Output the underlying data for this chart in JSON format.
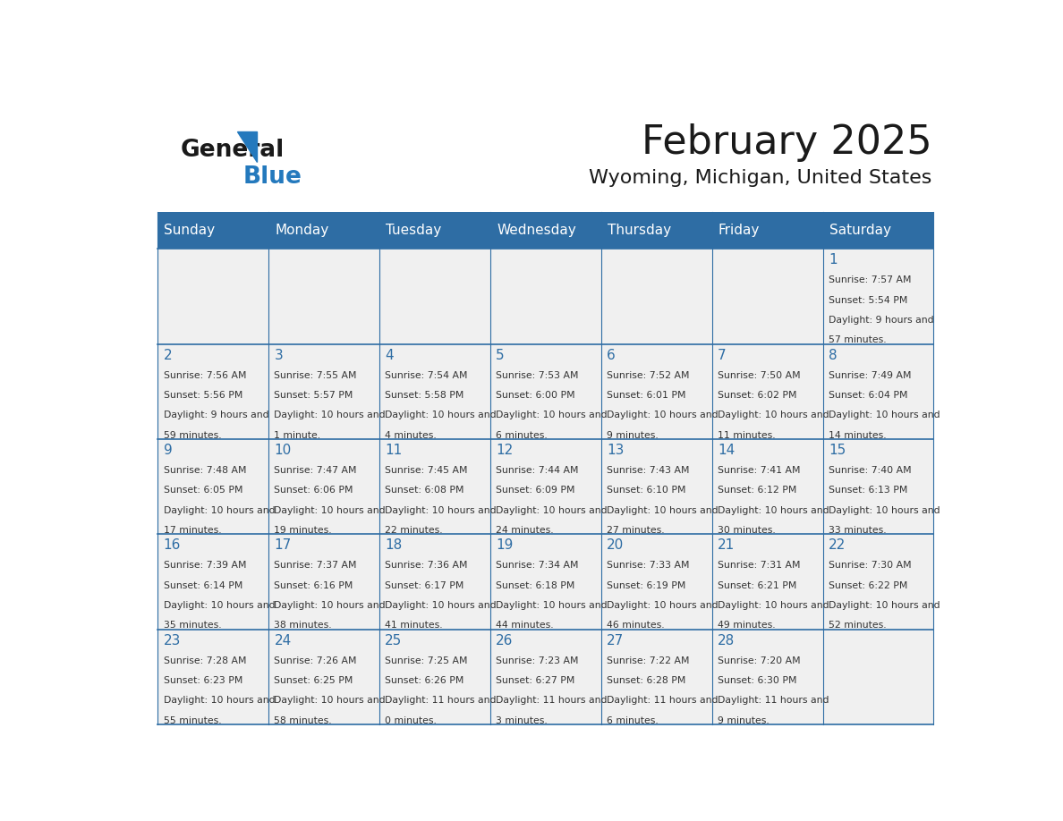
{
  "title": "February 2025",
  "subtitle": "Wyoming, Michigan, United States",
  "days_of_week": [
    "Sunday",
    "Monday",
    "Tuesday",
    "Wednesday",
    "Thursday",
    "Friday",
    "Saturday"
  ],
  "header_bg": "#2E6DA4",
  "header_text_color": "#FFFFFF",
  "cell_bg": "#F0F0F0",
  "cell_border_color": "#2E6DA4",
  "day_number_color": "#2E6DA4",
  "text_color": "#333333",
  "title_color": "#1a1a1a",
  "calendar_data": [
    {
      "day": 1,
      "col": 6,
      "row": 0,
      "sunrise": "7:57 AM",
      "sunset": "5:54 PM",
      "daylight": "9 hours and 57 minutes."
    },
    {
      "day": 2,
      "col": 0,
      "row": 1,
      "sunrise": "7:56 AM",
      "sunset": "5:56 PM",
      "daylight": "9 hours and 59 minutes."
    },
    {
      "day": 3,
      "col": 1,
      "row": 1,
      "sunrise": "7:55 AM",
      "sunset": "5:57 PM",
      "daylight": "10 hours and 1 minute."
    },
    {
      "day": 4,
      "col": 2,
      "row": 1,
      "sunrise": "7:54 AM",
      "sunset": "5:58 PM",
      "daylight": "10 hours and 4 minutes."
    },
    {
      "day": 5,
      "col": 3,
      "row": 1,
      "sunrise": "7:53 AM",
      "sunset": "6:00 PM",
      "daylight": "10 hours and 6 minutes."
    },
    {
      "day": 6,
      "col": 4,
      "row": 1,
      "sunrise": "7:52 AM",
      "sunset": "6:01 PM",
      "daylight": "10 hours and 9 minutes."
    },
    {
      "day": 7,
      "col": 5,
      "row": 1,
      "sunrise": "7:50 AM",
      "sunset": "6:02 PM",
      "daylight": "10 hours and 11 minutes."
    },
    {
      "day": 8,
      "col": 6,
      "row": 1,
      "sunrise": "7:49 AM",
      "sunset": "6:04 PM",
      "daylight": "10 hours and 14 minutes."
    },
    {
      "day": 9,
      "col": 0,
      "row": 2,
      "sunrise": "7:48 AM",
      "sunset": "6:05 PM",
      "daylight": "10 hours and 17 minutes."
    },
    {
      "day": 10,
      "col": 1,
      "row": 2,
      "sunrise": "7:47 AM",
      "sunset": "6:06 PM",
      "daylight": "10 hours and 19 minutes."
    },
    {
      "day": 11,
      "col": 2,
      "row": 2,
      "sunrise": "7:45 AM",
      "sunset": "6:08 PM",
      "daylight": "10 hours and 22 minutes."
    },
    {
      "day": 12,
      "col": 3,
      "row": 2,
      "sunrise": "7:44 AM",
      "sunset": "6:09 PM",
      "daylight": "10 hours and 24 minutes."
    },
    {
      "day": 13,
      "col": 4,
      "row": 2,
      "sunrise": "7:43 AM",
      "sunset": "6:10 PM",
      "daylight": "10 hours and 27 minutes."
    },
    {
      "day": 14,
      "col": 5,
      "row": 2,
      "sunrise": "7:41 AM",
      "sunset": "6:12 PM",
      "daylight": "10 hours and 30 minutes."
    },
    {
      "day": 15,
      "col": 6,
      "row": 2,
      "sunrise": "7:40 AM",
      "sunset": "6:13 PM",
      "daylight": "10 hours and 33 minutes."
    },
    {
      "day": 16,
      "col": 0,
      "row": 3,
      "sunrise": "7:39 AM",
      "sunset": "6:14 PM",
      "daylight": "10 hours and 35 minutes."
    },
    {
      "day": 17,
      "col": 1,
      "row": 3,
      "sunrise": "7:37 AM",
      "sunset": "6:16 PM",
      "daylight": "10 hours and 38 minutes."
    },
    {
      "day": 18,
      "col": 2,
      "row": 3,
      "sunrise": "7:36 AM",
      "sunset": "6:17 PM",
      "daylight": "10 hours and 41 minutes."
    },
    {
      "day": 19,
      "col": 3,
      "row": 3,
      "sunrise": "7:34 AM",
      "sunset": "6:18 PM",
      "daylight": "10 hours and 44 minutes."
    },
    {
      "day": 20,
      "col": 4,
      "row": 3,
      "sunrise": "7:33 AM",
      "sunset": "6:19 PM",
      "daylight": "10 hours and 46 minutes."
    },
    {
      "day": 21,
      "col": 5,
      "row": 3,
      "sunrise": "7:31 AM",
      "sunset": "6:21 PM",
      "daylight": "10 hours and 49 minutes."
    },
    {
      "day": 22,
      "col": 6,
      "row": 3,
      "sunrise": "7:30 AM",
      "sunset": "6:22 PM",
      "daylight": "10 hours and 52 minutes."
    },
    {
      "day": 23,
      "col": 0,
      "row": 4,
      "sunrise": "7:28 AM",
      "sunset": "6:23 PM",
      "daylight": "10 hours and 55 minutes."
    },
    {
      "day": 24,
      "col": 1,
      "row": 4,
      "sunrise": "7:26 AM",
      "sunset": "6:25 PM",
      "daylight": "10 hours and 58 minutes."
    },
    {
      "day": 25,
      "col": 2,
      "row": 4,
      "sunrise": "7:25 AM",
      "sunset": "6:26 PM",
      "daylight": "11 hours and 0 minutes."
    },
    {
      "day": 26,
      "col": 3,
      "row": 4,
      "sunrise": "7:23 AM",
      "sunset": "6:27 PM",
      "daylight": "11 hours and 3 minutes."
    },
    {
      "day": 27,
      "col": 4,
      "row": 4,
      "sunrise": "7:22 AM",
      "sunset": "6:28 PM",
      "daylight": "11 hours and 6 minutes."
    },
    {
      "day": 28,
      "col": 5,
      "row": 4,
      "sunrise": "7:20 AM",
      "sunset": "6:30 PM",
      "daylight": "11 hours and 9 minutes."
    }
  ],
  "num_rows": 5,
  "num_cols": 7,
  "logo_color_general": "#1a1a1a",
  "logo_color_blue": "#2479BD",
  "logo_triangle_color": "#2479BD"
}
